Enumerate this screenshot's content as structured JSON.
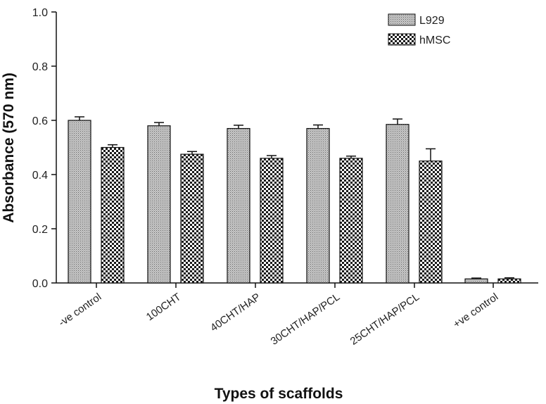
{
  "chart_data": {
    "type": "bar",
    "title": "",
    "xlabel": "Types of scaffolds",
    "ylabel": "Absorbance (570 nm)",
    "ylim": [
      0,
      1.0
    ],
    "yticks": [
      "0.0",
      "0.2",
      "0.4",
      "0.6",
      "0.8",
      "1.0"
    ],
    "grid": false,
    "legend_position": "top-right",
    "categories": [
      "-ve control",
      "100CHT",
      "40CHT/HAP",
      "30CHT/HAP/PCL",
      "25CHT/HAP/PCL",
      "+ve control"
    ],
    "series": [
      {
        "name": "L929",
        "pattern": "fine-dot",
        "values": [
          0.6,
          0.58,
          0.57,
          0.57,
          0.585,
          0.015
        ],
        "errors": [
          0.013,
          0.012,
          0.012,
          0.013,
          0.02,
          0.003
        ]
      },
      {
        "name": "hMSC",
        "pattern": "checker",
        "values": [
          0.5,
          0.475,
          0.46,
          0.46,
          0.45,
          0.015
        ],
        "errors": [
          0.01,
          0.01,
          0.01,
          0.008,
          0.045,
          0.004
        ]
      }
    ]
  },
  "colors": {
    "axis": "#111111",
    "fill_light": "#d9d9d9",
    "fill_dark": "#2a2a2a"
  }
}
